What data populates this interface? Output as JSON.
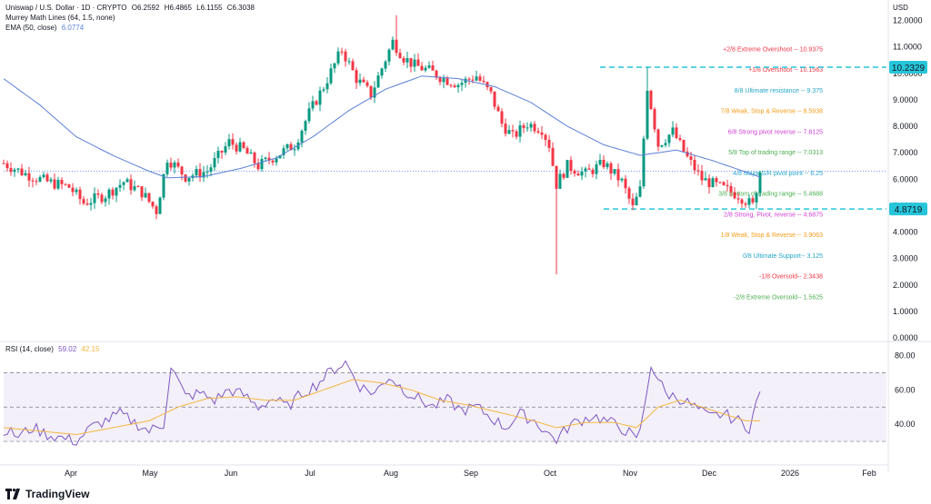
{
  "header": {
    "symbol": "Uniswap / U.S. Dollar · 1D · CRYPTO",
    "ohlc": {
      "o": "O6.2592",
      "h": "H6.4865",
      "l": "L6.1155",
      "c": "C6.3038"
    },
    "indicators": [
      {
        "label": "Murrey Math Lines (64, 1.5, none)",
        "value": ""
      },
      {
        "label": "EMA (50, close)",
        "value": "6.0774"
      }
    ],
    "rsi_label": "RSI (14, close)",
    "rsi_values": [
      "59.02",
      "42.15"
    ],
    "currency": "USD"
  },
  "branding": {
    "logo_text": "TradingView"
  },
  "colors": {
    "up": "#089981",
    "down": "#f23645",
    "ema": "#5b7fd6",
    "rsi": "#7e57c2",
    "rsi_ma": "#f4b740",
    "rsi_band": "#7e57c2",
    "price_tag": "#26c6da",
    "axis_text": "#131722"
  },
  "chart_data": [
    {
      "type": "candlestick",
      "title": "Uniswap / U.S. Dollar · 1D · CRYPTO",
      "ylim": [
        0,
        12.5
      ],
      "y_ticks": [
        0,
        1,
        2,
        3,
        4,
        5,
        6,
        7,
        8,
        9,
        10,
        11,
        12
      ],
      "y_tick_labels": [
        "0.0000",
        "1.0000",
        "2.0000",
        "3.0000",
        "4.0000",
        "5.0000",
        "6.0000",
        "7.0000",
        "8.0000",
        "9.0000",
        "10.0000",
        "11.0000",
        "12.0000"
      ],
      "x_labels": [
        "Apr",
        "May",
        "Jun",
        "Jul",
        "Aug",
        "Sep",
        "Oct",
        "Nov",
        "Dec",
        "2026",
        "Feb"
      ],
      "price_tags": [
        {
          "label": "10.2329",
          "value": 10.2329
        },
        {
          "label": "4.8719",
          "value": 4.8719
        }
      ],
      "last_price": 6.3038,
      "murrey_lines": [
        {
          "label": "+2/8 Extreme Overshoot --  10.9375",
          "value": 10.9375,
          "color": "#f23645"
        },
        {
          "label": "+1/8 Overshoot --  10.1563",
          "value": 10.1563,
          "color": "#f23645"
        },
        {
          "label": "8/8 Ultimate resistance --  9.375",
          "value": 9.375,
          "color": "#26a6c8"
        },
        {
          "label": "7/8 Weak, Stop & Reverse --  8.5938",
          "value": 8.5938,
          "color": "#f59c1a"
        },
        {
          "label": "6/8 Strong pivot reverse --  7.8125",
          "value": 7.8125,
          "color": "#d03fd6"
        },
        {
          "label": "5/8 Top of trading range --  7.0313",
          "value": 7.0313,
          "color": "#4caf50"
        },
        {
          "label": "4/8 Major S/R pivot point --  6.25",
          "value": 6.25,
          "color": "#26a6c8"
        },
        {
          "label": "3/8 Bottom of trading range --  5.4688",
          "value": 5.4688,
          "color": "#4caf50"
        },
        {
          "label": "2/8 Strong, Pivot, reverse --  4.6875",
          "value": 4.6875,
          "color": "#d03fd6"
        },
        {
          "label": "1/8 Weak, Stop & Reverse --  3.9063",
          "value": 3.9063,
          "color": "#f59c1a"
        },
        {
          "label": "0/8 Ultimate Support--  3.125",
          "value": 3.125,
          "color": "#26a6c8"
        },
        {
          "label": "-1/8 Oversold--  2.3438",
          "value": 2.3438,
          "color": "#f23645"
        },
        {
          "label": "-2/8 Extreme Oversold--  1.5625",
          "value": 1.5625,
          "color": "#4caf50"
        }
      ],
      "price_anchors": [
        [
          0,
          6.6
        ],
        [
          6,
          6.2
        ],
        [
          12,
          5.9
        ],
        [
          18,
          5.7
        ],
        [
          22,
          5.1
        ],
        [
          28,
          5.4
        ],
        [
          33,
          5.9
        ],
        [
          38,
          5.5
        ],
        [
          42,
          4.8
        ],
        [
          45,
          6.8
        ],
        [
          50,
          6.1
        ],
        [
          56,
          6.3
        ],
        [
          62,
          7.4
        ],
        [
          66,
          7.1
        ],
        [
          70,
          6.5
        ],
        [
          75,
          6.9
        ],
        [
          80,
          7.3
        ],
        [
          84,
          8.5
        ],
        [
          88,
          9.5
        ],
        [
          93,
          10.9
        ],
        [
          97,
          9.8
        ],
        [
          101,
          9.2
        ],
        [
          104,
          10.2
        ],
        [
          107,
          11.2
        ],
        [
          110,
          10.6
        ],
        [
          113,
          10.3
        ],
        [
          117,
          10.1
        ],
        [
          121,
          9.8
        ],
        [
          125,
          9.6
        ],
        [
          130,
          9.9
        ],
        [
          134,
          9.2
        ],
        [
          137,
          8.1
        ],
        [
          140,
          7.6
        ],
        [
          144,
          8.1
        ],
        [
          148,
          7.9
        ],
        [
          150,
          7.3
        ],
        [
          152,
          5.8
        ],
        [
          155,
          6.5
        ],
        [
          160,
          6.2
        ],
        [
          165,
          6.6
        ],
        [
          170,
          5.9
        ],
        [
          173,
          4.9
        ],
        [
          175,
          5.6
        ],
        [
          177,
          9.5
        ],
        [
          180,
          7.3
        ],
        [
          184,
          7.8
        ],
        [
          188,
          6.8
        ],
        [
          192,
          6.0
        ],
        [
          197,
          5.7
        ],
        [
          202,
          5.4
        ],
        [
          206,
          5.0
        ],
        [
          208,
          6.3
        ]
      ],
      "spikes": [
        {
          "index": 152,
          "low": 2.4
        },
        {
          "index": 177,
          "high": 10.23
        },
        {
          "index": 108,
          "high": 12.2
        },
        {
          "index": 207,
          "low": 4.87
        }
      ],
      "ema_anchors": [
        [
          0,
          9.8
        ],
        [
          10,
          8.8
        ],
        [
          20,
          7.6
        ],
        [
          30,
          6.9
        ],
        [
          40,
          6.3
        ],
        [
          45,
          6.05
        ],
        [
          55,
          6.1
        ],
        [
          65,
          6.4
        ],
        [
          75,
          6.8
        ],
        [
          85,
          7.6
        ],
        [
          95,
          8.6
        ],
        [
          105,
          9.4
        ],
        [
          115,
          9.9
        ],
        [
          125,
          9.8
        ],
        [
          135,
          9.5
        ],
        [
          145,
          8.9
        ],
        [
          155,
          8.0
        ],
        [
          165,
          7.3
        ],
        [
          175,
          6.9
        ],
        [
          185,
          7.1
        ],
        [
          195,
          6.7
        ],
        [
          208,
          6.08
        ]
      ]
    },
    {
      "type": "line",
      "title": "RSI (14, close)",
      "ylim": [
        20,
        85
      ],
      "y_ticks": [
        40,
        60,
        80
      ],
      "y_tick_labels": [
        "40.00",
        "60.00",
        "80.00"
      ],
      "bands": {
        "upper": 70,
        "middle": 50,
        "lower": 30
      },
      "series": [
        {
          "name": "RSI",
          "anchors": [
            [
              0,
              37
            ],
            [
              4,
              33
            ],
            [
              8,
              38
            ],
            [
              12,
              34
            ],
            [
              16,
              32
            ],
            [
              20,
              30
            ],
            [
              24,
              38
            ],
            [
              28,
              42
            ],
            [
              32,
              46
            ],
            [
              36,
              41
            ],
            [
              40,
              36
            ],
            [
              44,
              40
            ],
            [
              46,
              74
            ],
            [
              50,
              56
            ],
            [
              54,
              58
            ],
            [
              58,
              54
            ],
            [
              62,
              60
            ],
            [
              66,
              57
            ],
            [
              70,
              50
            ],
            [
              74,
              55
            ],
            [
              78,
              50
            ],
            [
              82,
              58
            ],
            [
              86,
              63
            ],
            [
              90,
              71
            ],
            [
              94,
              76
            ],
            [
              98,
              62
            ],
            [
              102,
              58
            ],
            [
              106,
              68
            ],
            [
              110,
              60
            ],
            [
              114,
              55
            ],
            [
              118,
              50
            ],
            [
              122,
              54
            ],
            [
              126,
              48
            ],
            [
              130,
              50
            ],
            [
              134,
              44
            ],
            [
              138,
              38
            ],
            [
              142,
              46
            ],
            [
              146,
              42
            ],
            [
              150,
              34
            ],
            [
              152,
              31
            ],
            [
              156,
              40
            ],
            [
              162,
              45
            ],
            [
              168,
              40
            ],
            [
              172,
              35
            ],
            [
              174,
              30
            ],
            [
              176,
              46
            ],
            [
              178,
              75
            ],
            [
              182,
              58
            ],
            [
              186,
              55
            ],
            [
              190,
              50
            ],
            [
              194,
              44
            ],
            [
              198,
              46
            ],
            [
              202,
              42
            ],
            [
              205,
              38
            ],
            [
              208,
              59
            ]
          ]
        },
        {
          "name": "RSI MA",
          "anchors": [
            [
              0,
              38
            ],
            [
              10,
              36
            ],
            [
              20,
              34
            ],
            [
              30,
              38
            ],
            [
              40,
              42
            ],
            [
              48,
              50
            ],
            [
              56,
              55
            ],
            [
              64,
              56
            ],
            [
              72,
              54
            ],
            [
              80,
              54
            ],
            [
              88,
              60
            ],
            [
              96,
              66
            ],
            [
              104,
              64
            ],
            [
              112,
              60
            ],
            [
              120,
              54
            ],
            [
              128,
              51
            ],
            [
              136,
              47
            ],
            [
              144,
              43
            ],
            [
              152,
              38
            ],
            [
              160,
              41
            ],
            [
              168,
              41
            ],
            [
              174,
              38
            ],
            [
              180,
              50
            ],
            [
              186,
              54
            ],
            [
              192,
              50
            ],
            [
              198,
              46
            ],
            [
              204,
              42
            ],
            [
              208,
              42
            ]
          ]
        }
      ]
    }
  ]
}
